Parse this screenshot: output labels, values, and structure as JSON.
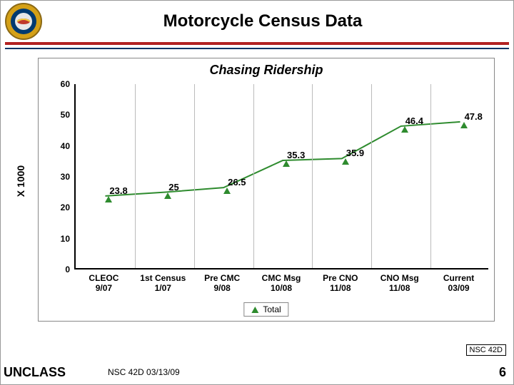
{
  "header": {
    "title": "Motorcycle Census Data",
    "rule_primary_color": "#b22222",
    "rule_secondary_color": "#003366"
  },
  "yaxis_label": "X 1000",
  "chart": {
    "type": "line",
    "title": "Chasing Ridership",
    "title_fontsize": 18,
    "ylim": [
      0,
      60
    ],
    "ytick_step": 10,
    "yticks": [
      0,
      10,
      20,
      30,
      40,
      50,
      60
    ],
    "categories": [
      {
        "l1": "CLEOC",
        "l2": "9/07"
      },
      {
        "l1": "1st Census",
        "l2": "1/07"
      },
      {
        "l1": "Pre CMC",
        "l2": "9/08"
      },
      {
        "l1": "CMC Msg",
        "l2": "10/08"
      },
      {
        "l1": "Pre CNO",
        "l2": "11/08"
      },
      {
        "l1": "CNO Msg",
        "l2": "11/08"
      },
      {
        "l1": "Current",
        "l2": "03/09"
      }
    ],
    "series": {
      "name": "Total",
      "color": "#2e8b2e",
      "marker": "triangle",
      "values": [
        23.8,
        25,
        26.5,
        35.3,
        35.9,
        46.4,
        47.8
      ]
    },
    "background_color": "#ffffff",
    "grid_color": "#bbbbbb",
    "axis_color": "#000000",
    "font_family": "Arial",
    "tick_fontsize": 12,
    "datalabel_fontsize": 13
  },
  "footer": {
    "badge": "NSC 42D",
    "unclass": "UNCLASS",
    "mid": "NSC 42D 03/13/09",
    "page": "6"
  }
}
